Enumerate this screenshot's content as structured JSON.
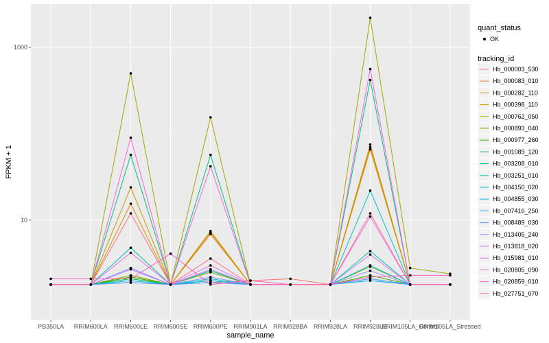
{
  "chart_data": {
    "type": "line",
    "xlabel": "sample_name",
    "ylabel": "FPKM + 1",
    "y_scale": "log10",
    "ylim": [
      1.6,
      2600
    ],
    "y_ticks": [
      10,
      1000
    ],
    "y_tick_labels": [
      "10",
      "1000"
    ],
    "grid": true,
    "legend_position": "right",
    "categories": [
      "PB350LA",
      "RRIM600LA",
      "RRIM600LE",
      "RRIM600SE",
      "RRIM600PE",
      "RRIM901LA",
      "RRIM928BA",
      "RRIM928LA",
      "RRIM928LE",
      "RRIM105LA_Control",
      "RRIM105LA_Stressed"
    ],
    "marker_legend": {
      "title": "quant_status",
      "label": "OK"
    },
    "color_legend_title": "tracking_id",
    "series": [
      {
        "name": "Hb_000003_530",
        "color": "#F8766D",
        "values": [
          1.8,
          1.8,
          2.2,
          1.8,
          1.9,
          2.0,
          2.1,
          1.8,
          2.3,
          1.8,
          1.8
        ]
      },
      {
        "name": "Hb_000083_010",
        "color": "#EA8331",
        "values": [
          1.8,
          1.8,
          2.3,
          1.8,
          7.2,
          1.8,
          1.8,
          1.8,
          70.0,
          1.8,
          1.8
        ]
      },
      {
        "name": "Hb_000282_110",
        "color": "#D89000",
        "values": [
          1.8,
          1.8,
          15.5,
          1.8,
          6.9,
          1.8,
          1.8,
          1.8,
          66.0,
          1.8,
          1.8
        ]
      },
      {
        "name": "Hb_000398_110",
        "color": "#C09B00",
        "values": [
          1.8,
          1.8,
          24.0,
          1.8,
          7.5,
          1.8,
          1.8,
          1.8,
          75.0,
          1.8,
          1.8
        ]
      },
      {
        "name": "Hb_000762_050",
        "color": "#A3A500",
        "values": [
          1.8,
          1.8,
          500.0,
          1.8,
          155.0,
          1.8,
          1.8,
          1.8,
          2200.0,
          2.8,
          2.4
        ]
      },
      {
        "name": "Hb_000893_040",
        "color": "#7CAE00",
        "values": [
          1.8,
          1.8,
          2.3,
          1.8,
          2.5,
          1.8,
          1.8,
          1.8,
          2.9,
          1.8,
          1.8
        ]
      },
      {
        "name": "Hb_000977_260",
        "color": "#39B600",
        "values": [
          1.8,
          1.8,
          2.2,
          1.8,
          2.6,
          1.8,
          1.8,
          1.8,
          2.3,
          1.8,
          1.8
        ]
      },
      {
        "name": "Hb_001089_120",
        "color": "#00BB4E",
        "values": [
          1.8,
          1.8,
          2.1,
          1.8,
          2.0,
          1.8,
          1.8,
          1.8,
          2.1,
          1.8,
          1.8
        ]
      },
      {
        "name": "Hb_003208_010",
        "color": "#00BF7D",
        "values": [
          1.8,
          1.8,
          57.0,
          1.8,
          57.0,
          1.8,
          1.8,
          1.8,
          420.0,
          1.8,
          1.8
        ]
      },
      {
        "name": "Hb_003251_010",
        "color": "#00C1A3",
        "values": [
          1.8,
          1.8,
          4.8,
          1.8,
          2.6,
          1.8,
          1.8,
          1.8,
          4.4,
          1.8,
          1.8
        ]
      },
      {
        "name": "Hb_004150_020",
        "color": "#00BFC4",
        "values": [
          1.8,
          1.8,
          2.7,
          1.8,
          2.1,
          1.8,
          1.8,
          1.8,
          22.0,
          1.8,
          1.8
        ]
      },
      {
        "name": "Hb_004855_030",
        "color": "#00B8E7",
        "values": [
          1.8,
          1.8,
          2.0,
          1.8,
          2.0,
          1.8,
          1.8,
          1.8,
          3.0,
          1.8,
          1.8
        ]
      },
      {
        "name": "Hb_007416_250",
        "color": "#00A9FF",
        "values": [
          1.8,
          1.8,
          1.9,
          1.8,
          1.9,
          1.8,
          1.8,
          1.8,
          2.0,
          1.8,
          1.8
        ]
      },
      {
        "name": "Hb_008489_030",
        "color": "#619CFF",
        "values": [
          1.8,
          1.8,
          1.9,
          1.8,
          1.9,
          1.8,
          1.8,
          1.8,
          2.1,
          1.8,
          1.8
        ]
      },
      {
        "name": "Hb_013405_240",
        "color": "#9590FF",
        "values": [
          1.8,
          1.8,
          2.8,
          1.8,
          2.2,
          1.8,
          1.8,
          1.8,
          2.6,
          1.8,
          1.8
        ]
      },
      {
        "name": "Hb_013818_020",
        "color": "#C77CFF",
        "values": [
          1.8,
          1.8,
          2.7,
          1.8,
          2.7,
          1.8,
          1.8,
          1.8,
          4.0,
          1.8,
          1.8
        ]
      },
      {
        "name": "Hb_015981_010",
        "color": "#E76BF3",
        "values": [
          1.8,
          1.8,
          4.2,
          1.8,
          3.0,
          1.8,
          1.8,
          1.8,
          11.0,
          1.8,
          1.8
        ]
      },
      {
        "name": "Hb_020805_090",
        "color": "#FA62DB",
        "values": [
          1.8,
          1.8,
          90.0,
          1.8,
          42.0,
          1.8,
          1.8,
          1.8,
          560.0,
          1.8,
          1.8
        ]
      },
      {
        "name": "Hb_020859_010",
        "color": "#FF62BC",
        "values": [
          2.1,
          2.1,
          2.1,
          4.1,
          1.8,
          2.0,
          1.8,
          1.8,
          2.2,
          2.3,
          2.3
        ]
      },
      {
        "name": "Hb_027751_070",
        "color": "#FF6C91",
        "values": [
          1.8,
          1.8,
          12.0,
          1.8,
          3.6,
          1.8,
          1.8,
          1.8,
          12.0,
          1.8,
          1.8
        ]
      }
    ]
  }
}
